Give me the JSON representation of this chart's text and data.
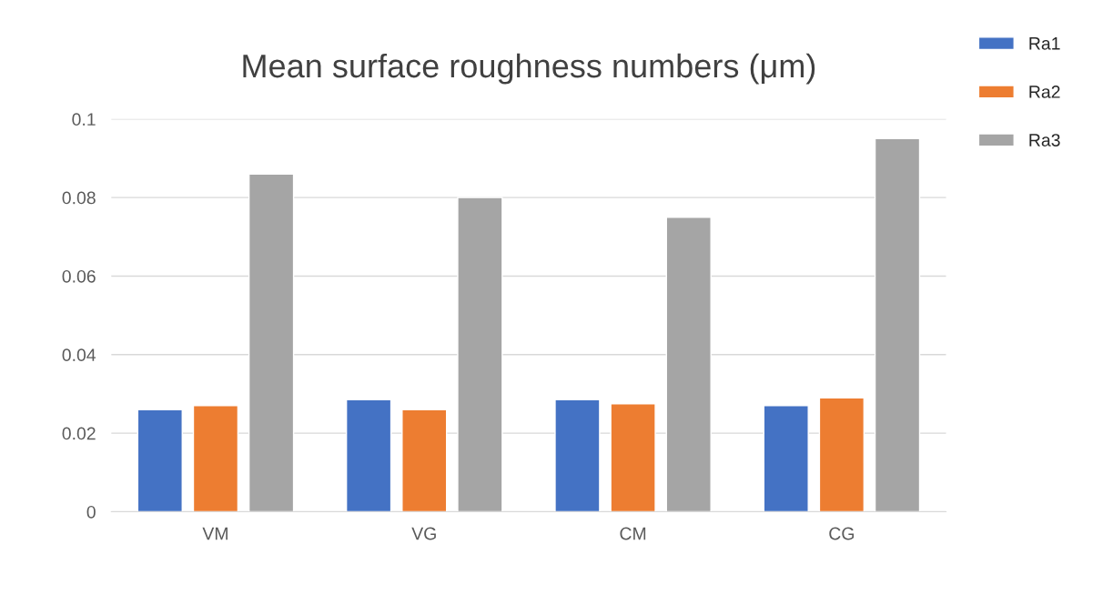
{
  "chart_data": {
    "type": "bar",
    "title": "Mean surface roughness numbers (μm)",
    "categories": [
      "VM",
      "VG",
      "CM",
      "CG"
    ],
    "series": [
      {
        "name": "Ra1",
        "color": "#4472c4",
        "values": [
          0.026,
          0.0285,
          0.0285,
          0.027
        ]
      },
      {
        "name": "Ra2",
        "color": "#ed7d31",
        "values": [
          0.027,
          0.026,
          0.0275,
          0.029
        ]
      },
      {
        "name": "Ra3",
        "color": "#a5a5a5",
        "values": [
          0.086,
          0.08,
          0.075,
          0.095
        ]
      }
    ],
    "ylim": [
      0,
      0.1
    ],
    "yticks": [
      0,
      0.02,
      0.04,
      0.06,
      0.08,
      0.1
    ],
    "grid": "y",
    "legend": "right"
  }
}
